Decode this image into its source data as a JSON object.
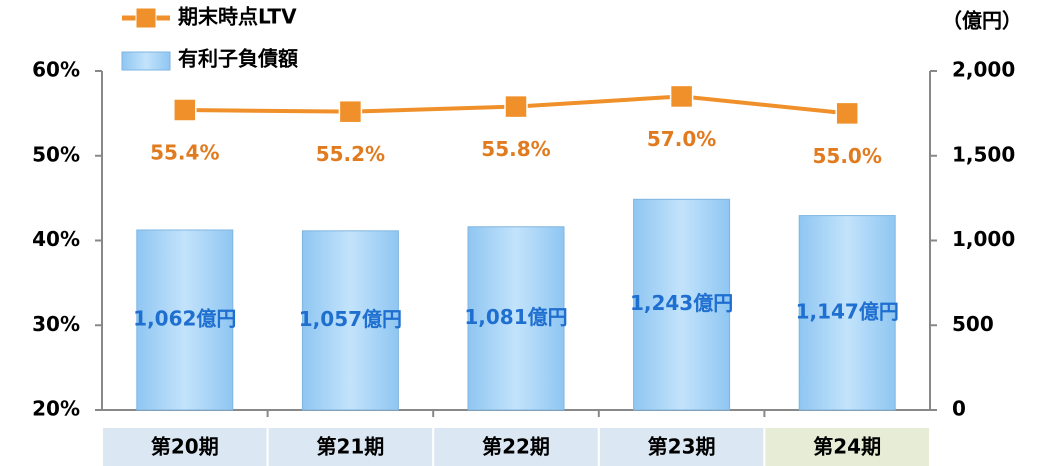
{
  "chart_data": {
    "type": "combo",
    "categories": [
      "第20期",
      "第21期",
      "第22期",
      "第23期",
      "第24期"
    ],
    "category_colors": [
      "#dbe8f3",
      "#dbe8f3",
      "#dbe8f3",
      "#dbe8f3",
      "#e6ecd5"
    ],
    "series": [
      {
        "name": "期末時点LTV",
        "type": "line",
        "color": "#f0902a",
        "label_color": "#e07b20",
        "axis": "y",
        "values": [
          55.4,
          55.2,
          55.8,
          57.0,
          55.0
        ],
        "value_labels": [
          "55.4%",
          "55.2%",
          "55.8%",
          "57.0%",
          "55.0%"
        ]
      },
      {
        "name": "有利子負債額",
        "type": "bar",
        "color": "#a9d4f5",
        "label_color": "#1f6fd0",
        "axis": "y2",
        "values": [
          1062,
          1057,
          1081,
          1243,
          1147
        ],
        "value_labels": [
          "1,062億円",
          "1,057億円",
          "1,081億円",
          "1,243億円",
          "1,147億円"
        ]
      }
    ],
    "y2_unit": "（億円）",
    "ylim": [
      20,
      60
    ],
    "yticks": [
      {
        "value": 20,
        "label": "20%"
      },
      {
        "value": 30,
        "label": "30%"
      },
      {
        "value": 40,
        "label": "40%"
      },
      {
        "value": 50,
        "label": "50%"
      },
      {
        "value": 60,
        "label": "60%"
      }
    ],
    "y2lim": [
      0,
      2000
    ],
    "y2ticks": [
      0,
      500,
      {
        "value": 1000,
        "label": "1,000"
      },
      {
        "value": 1500,
        "label": "1,500"
      },
      {
        "value": 2000,
        "label": "2,000"
      }
    ],
    "grid": false,
    "legend": "top-left"
  }
}
